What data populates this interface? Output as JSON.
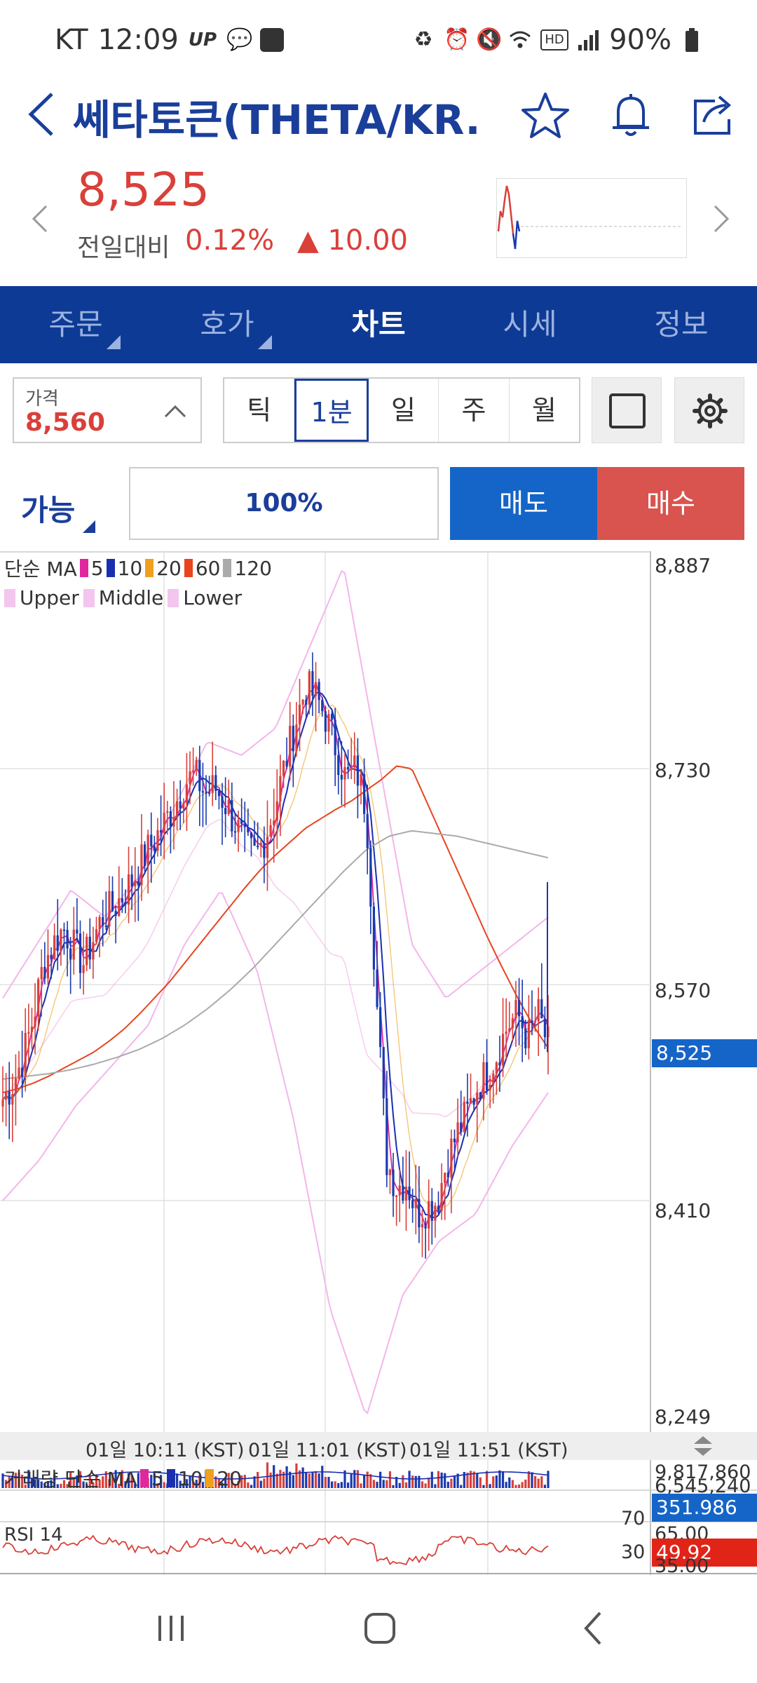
{
  "status_bar": {
    "carrier": "KT",
    "time": "12:09",
    "battery": "90%",
    "icons_left": [
      "up-icon",
      "talk-icon",
      "app-icon"
    ],
    "icons_right": [
      "recycle-icon",
      "alarm-icon",
      "mute-icon",
      "wifi-icon",
      "hd-icon",
      "signal-icon",
      "battery-icon"
    ]
  },
  "header": {
    "title": "쎄타토큰(THETA/KR...",
    "icons": [
      "back-icon",
      "star-icon",
      "bell-icon",
      "share-icon"
    ]
  },
  "price": {
    "current": "8,525",
    "change_label": "전일대비",
    "change_pct": "0.12%",
    "change_abs": "▲ 10.00"
  },
  "tabs": [
    {
      "label": "주문",
      "active": false
    },
    {
      "label": "호가",
      "active": false
    },
    {
      "label": "차트",
      "active": true
    },
    {
      "label": "시세",
      "active": false
    },
    {
      "label": "정보",
      "active": false
    }
  ],
  "controls": {
    "price_label": "가격",
    "price_value": "8,560",
    "intervals": [
      "틱",
      "1분",
      "일",
      "주",
      "월"
    ],
    "active_interval": "1분"
  },
  "order": {
    "avail_label": "가능",
    "ratio": "100%",
    "sell_label": "매도",
    "buy_label": "매수"
  },
  "colors": {
    "up": "#d9403a",
    "down": "#1a3ab0",
    "brand": "#0d3a94",
    "sell": "#1565c8",
    "buy": "#d9534f"
  },
  "chart_data": {
    "type": "candlestick",
    "legend_ma": {
      "label": "단순 MA",
      "periods": [
        {
          "name": "5",
          "color": "#e0279e"
        },
        {
          "name": "10",
          "color": "#1a2fb0"
        },
        {
          "name": "20",
          "color": "#f0a01e"
        },
        {
          "name": "60",
          "color": "#e8441e"
        },
        {
          "name": "120",
          "color": "#aaaaaa"
        }
      ]
    },
    "legend_bb": [
      "Upper",
      "Middle",
      "Lower"
    ],
    "y_ticks": [
      "8,887",
      "8,730",
      "8,570",
      "8,410",
      "8,249"
    ],
    "ylim": [
      8249,
      8887
    ],
    "current_price_tag": "8,525",
    "x_ticks": [
      "01일 10:11 (KST)",
      "01일 11:01 (KST)",
      "01일 11:51 (KST)"
    ],
    "close_path": [
      8485,
      8497,
      8516,
      8545,
      8585,
      8600,
      8612,
      8598,
      8586,
      8605,
      8622,
      8627,
      8638,
      8650,
      8665,
      8677,
      8690,
      8703,
      8720,
      8725,
      8712,
      8716,
      8705,
      8690,
      8672,
      8665,
      8680,
      8704,
      8735,
      8765,
      8790,
      8783,
      8768,
      8745,
      8722,
      8730,
      8700,
      8560,
      8440,
      8420,
      8425,
      8400,
      8405,
      8410,
      8440,
      8460,
      8475,
      8495,
      8505,
      8520,
      8540,
      8548,
      8530,
      8548,
      8525
    ],
    "ma_60": [
      8490,
      8493,
      8497,
      8502,
      8508,
      8514,
      8520,
      8528,
      8537,
      8548,
      8560,
      8572,
      8586,
      8600,
      8614,
      8628,
      8642,
      8655,
      8666,
      8676,
      8686,
      8693,
      8700,
      8706,
      8714,
      8722,
      8732,
      8730,
      8705,
      8680,
      8655,
      8630,
      8605,
      8582,
      8560,
      8540,
      8523
    ],
    "ma_120": [
      8500,
      8502,
      8504,
      8507,
      8511,
      8516,
      8522,
      8530,
      8540,
      8552,
      8566,
      8582,
      8600,
      8618,
      8636,
      8654,
      8670,
      8680,
      8684,
      8682,
      8680,
      8676,
      8672,
      8668,
      8664
    ],
    "bb_upper": [
      8560,
      8600,
      8640,
      8620,
      8650,
      8700,
      8750,
      8740,
      8760,
      8820,
      8880,
      8740,
      8600,
      8560,
      8580,
      8600,
      8620
    ],
    "bb_lower": [
      8410,
      8440,
      8480,
      8510,
      8540,
      8600,
      8640,
      8580,
      8470,
      8330,
      8250,
      8340,
      8380,
      8400,
      8450,
      8490
    ],
    "volume_legend": {
      "label": "거래량 단순 MA",
      "periods": [
        "5",
        "10",
        "20"
      ]
    },
    "volume_ticks": [
      "9,817,860",
      "6,545,240"
    ],
    "volume_value": "351.986",
    "rsi_label": "RSI 14",
    "rsi_ticks": [
      "70",
      "65.00",
      "35.00",
      "30"
    ],
    "rsi_value": "49.92"
  },
  "nav": {
    "icons": [
      "recent-apps-icon",
      "home-icon",
      "back-nav-icon"
    ]
  }
}
